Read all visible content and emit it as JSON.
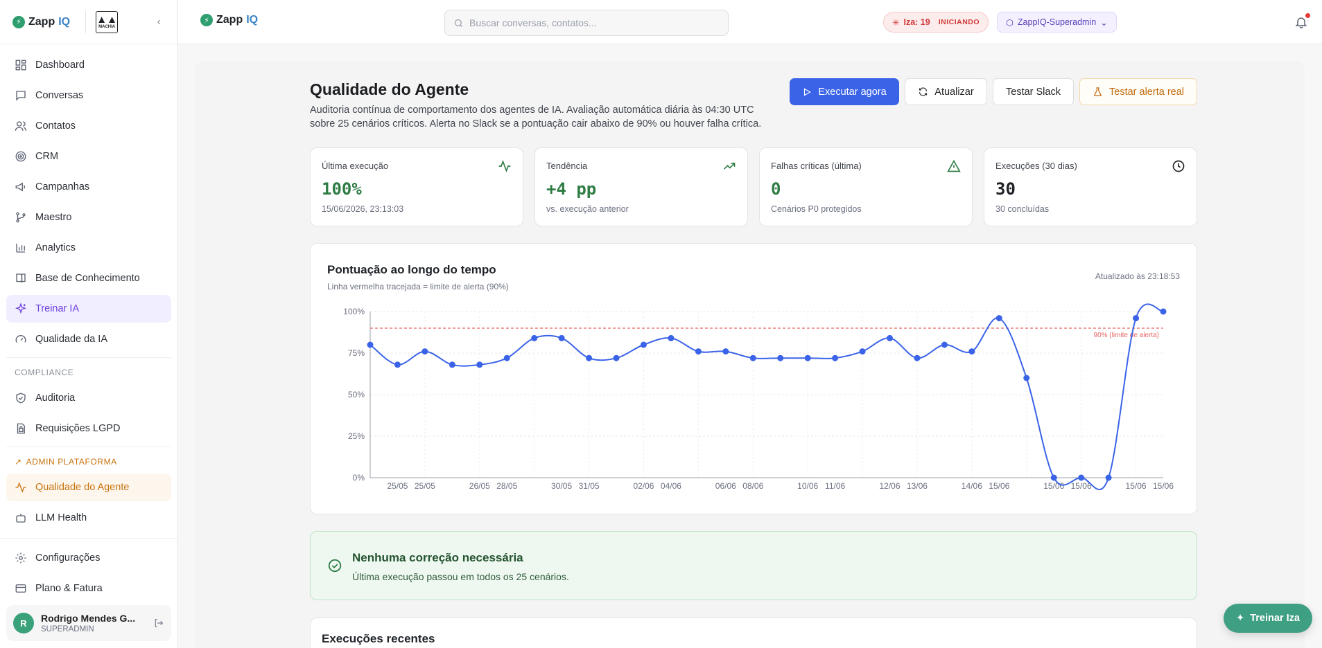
{
  "app": {
    "brand_left": "Zapp",
    "brand_right": "IQ",
    "partner_logo_text": "MACHIA"
  },
  "sidebar": {
    "items": [
      {
        "label": "Dashboard",
        "icon": "dashboard-icon"
      },
      {
        "label": "Conversas",
        "icon": "chat-icon"
      },
      {
        "label": "Contatos",
        "icon": "users-icon"
      },
      {
        "label": "CRM",
        "icon": "target-icon"
      },
      {
        "label": "Campanhas",
        "icon": "megaphone-icon"
      },
      {
        "label": "Maestro",
        "icon": "git-branch-icon"
      },
      {
        "label": "Analytics",
        "icon": "bar-chart-icon"
      },
      {
        "label": "Base de Conhecimento",
        "icon": "book-icon"
      },
      {
        "label": "Treinar IA",
        "icon": "sparkles-icon"
      },
      {
        "label": "Qualidade da IA",
        "icon": "gauge-icon"
      }
    ],
    "compliance_label": "COMPLIANCE",
    "compliance_items": [
      {
        "label": "Auditoria",
        "icon": "shield-check-icon"
      },
      {
        "label": "Requisições LGPD",
        "icon": "lock-file-icon"
      }
    ],
    "admin_label": "ADMIN PLATAFORMA",
    "admin_items": [
      {
        "label": "Qualidade do Agente",
        "icon": "activity-icon"
      },
      {
        "label": "LLM Health",
        "icon": "bot-icon"
      }
    ],
    "bottom_items": [
      {
        "label": "Configurações",
        "icon": "gear-icon"
      },
      {
        "label": "Plano & Fatura",
        "icon": "credit-card-icon"
      }
    ],
    "user": {
      "initial": "R",
      "name": "Rodrigo Mendes G...",
      "role": "SUPERADMIN"
    }
  },
  "header": {
    "search_placeholder": "Buscar conversas, contatos...",
    "iza_label": "Iza: 19",
    "iza_status": "INICIANDO",
    "org_label": "ZappIQ-Superadmin"
  },
  "page": {
    "title": "Qualidade do Agente",
    "subtitle": "Auditoria contínua de comportamento dos agentes de IA. Avaliação automática diária às 04:30 UTC sobre 25 cenários críticos. Alerta no Slack se a pontuação cair abaixo de 90% ou houver falha crítica.",
    "buttons": {
      "run": "Executar agora",
      "refresh": "Atualizar",
      "slack": "Testar Slack",
      "alert": "Testar alerta real"
    }
  },
  "kpis": [
    {
      "label": "Última execução",
      "value": "100%",
      "sub": "15/06/2026, 23:13:03",
      "icon": "activity-icon"
    },
    {
      "label": "Tendência",
      "value": "+4 pp",
      "sub": "vs. execução anterior",
      "icon": "trending-up-icon"
    },
    {
      "label": "Falhas críticas (última)",
      "value": "0",
      "sub": "Cenários P0 protegidos",
      "icon": "warning-icon"
    },
    {
      "label": "Execuções (30 dias)",
      "value": "30",
      "sub": "30 concluídas",
      "icon": "clock-icon"
    }
  ],
  "chart": {
    "title": "Pontuação ao longo do tempo",
    "subtitle": "Linha vermelha tracejada = limite de alerta (90%)",
    "updated": "Atualizado às 23:18:53",
    "threshold_label": "90% (limite de alerta)"
  },
  "chart_data": {
    "type": "line",
    "x": [
      "25/05",
      "25/05",
      "25/05",
      "25/05",
      "25/05",
      "26/05",
      "26/05",
      "28/05",
      "28/05",
      "30/05",
      "30/05",
      "31/05",
      "02/06",
      "02/06",
      "04/06",
      "04/06",
      "06/06",
      "06/06",
      "08/06",
      "08/06",
      "10/06",
      "11/06",
      "12/06",
      "13/06",
      "14/06",
      "15/06",
      "15/06",
      "15/06",
      "15/06",
      "15/06"
    ],
    "x_tick_labels": [
      "25/05",
      "25/05",
      "26/05",
      "28/05",
      "30/05",
      "31/05",
      "02/06",
      "04/06",
      "06/06",
      "08/06",
      "10/06",
      "11/06",
      "12/06",
      "13/06",
      "14/06",
      "15/06",
      "15/06",
      "15/06",
      "15/06",
      "15/06"
    ],
    "values": [
      80,
      68,
      76,
      68,
      68,
      72,
      84,
      84,
      72,
      72,
      80,
      84,
      76,
      76,
      72,
      72,
      72,
      72,
      76,
      84,
      72,
      80,
      76,
      96,
      60,
      0,
      0,
      0,
      96,
      100
    ],
    "ylim": [
      0,
      100
    ],
    "y_ticks": [
      "0%",
      "25%",
      "50%",
      "75%",
      "100%"
    ],
    "threshold": 90,
    "grid": true,
    "colors": {
      "line": "#3a63e8",
      "threshold": "#e86464"
    }
  },
  "status": {
    "title": "Nenhuma correção necessária",
    "sub": "Última execução passou em todos os 25 cenários."
  },
  "recent": {
    "title": "Execuções recentes"
  },
  "fab": {
    "label": "Treinar Iza"
  }
}
